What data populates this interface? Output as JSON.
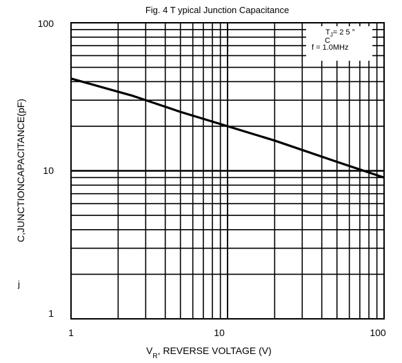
{
  "chart_data": {
    "type": "line",
    "title": "Fig. 4   T ypical Junction Capacitance",
    "xlabel_prefix": "V",
    "xlabel_sub": "R",
    "xlabel_rest": ", REVERSE VOLTAGE (V)",
    "ylabel": "C,JUNCTIONCAPACITANCE(pF)",
    "ylabel_sub": "j",
    "xscale": "log",
    "yscale": "log",
    "xlim": [
      1,
      100
    ],
    "ylim": [
      1,
      100
    ],
    "grid": true,
    "x_ticks": [
      "1",
      "10",
      "100"
    ],
    "y_ticks": [
      "100",
      "10",
      "1"
    ],
    "series": [
      {
        "x": [
          1,
          2.5,
          5,
          10,
          20,
          50,
          100
        ],
        "y": [
          42,
          32,
          25,
          20,
          16,
          11.5,
          9
        ]
      }
    ],
    "legend": {
      "position": "top-right",
      "line1_prefix": "T",
      "line1_sub": "J",
      "line1_rest": "= 2 5 °",
      "line2": "C",
      "line3": "f = 1.0MHz"
    },
    "line_color": "#000000"
  }
}
